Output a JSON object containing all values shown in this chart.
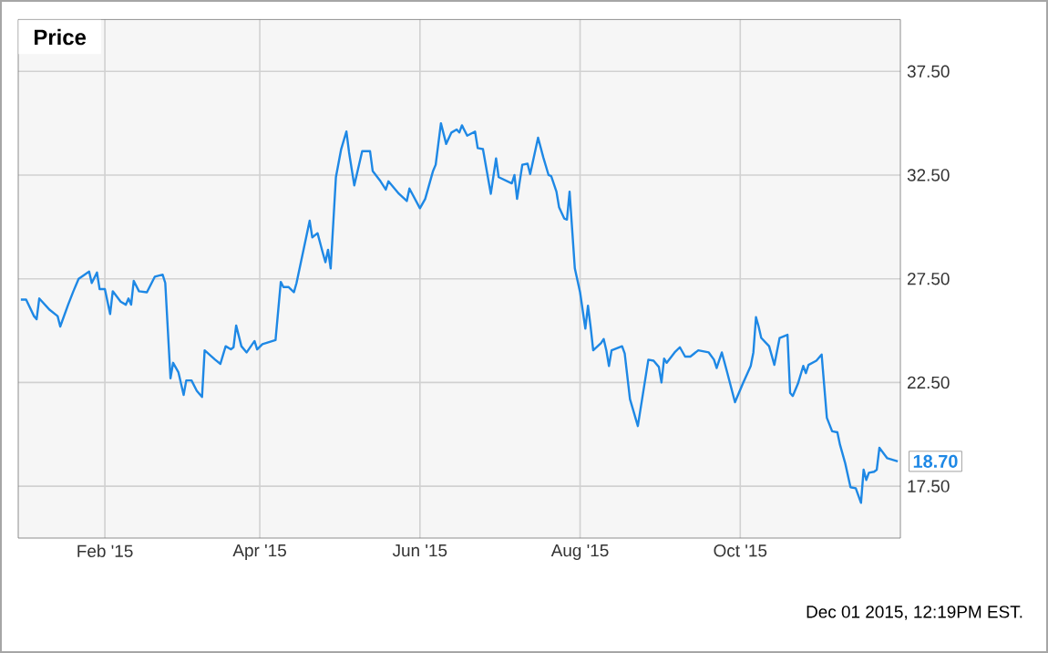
{
  "chart_data": {
    "type": "line",
    "title": "Price",
    "annotations": [
      {
        "text": "18.70",
        "x": "2015-11-30",
        "y": 18.7
      },
      "Dec 01 2015, 12:19PM EST."
    ],
    "x": [
      "2014-12-31",
      "2015-01-02",
      "2015-01-05",
      "2015-01-06",
      "2015-01-07",
      "2015-01-11",
      "2015-01-14",
      "2015-01-15",
      "2015-01-18",
      "2015-01-20",
      "2015-01-22",
      "2015-01-26",
      "2015-01-27",
      "2015-01-29",
      "2015-01-30",
      "2015-02-01",
      "2015-02-03",
      "2015-02-04",
      "2015-02-07",
      "2015-02-09",
      "2015-02-10",
      "2015-02-11",
      "2015-02-12",
      "2015-02-14",
      "2015-02-17",
      "2015-02-20",
      "2015-02-23",
      "2015-02-24",
      "2015-02-26",
      "2015-02-27",
      "2015-03-01",
      "2015-03-03",
      "2015-03-04",
      "2015-03-06",
      "2015-03-08",
      "2015-03-10",
      "2015-03-11",
      "2015-03-15",
      "2015-03-17",
      "2015-03-19",
      "2015-03-21",
      "2015-03-22",
      "2015-03-23",
      "2015-03-25",
      "2015-03-27",
      "2015-03-30",
      "2015-03-31",
      "2015-04-02",
      "2015-04-07",
      "2015-04-09",
      "2015-04-10",
      "2015-04-12",
      "2015-04-14",
      "2015-04-15",
      "2015-04-20",
      "2015-04-21",
      "2015-04-23",
      "2015-04-25",
      "2015-04-26",
      "2015-04-27",
      "2015-04-28",
      "2015-04-30",
      "2015-05-02",
      "2015-05-04",
      "2015-05-05",
      "2015-05-07",
      "2015-05-10",
      "2015-05-13",
      "2015-05-14",
      "2015-05-17",
      "2015-05-19",
      "2015-05-20",
      "2015-05-24",
      "2015-05-27",
      "2015-05-28",
      "2015-06-01",
      "2015-06-03",
      "2015-06-06",
      "2015-06-07",
      "2015-06-09",
      "2015-06-11",
      "2015-06-13",
      "2015-06-15",
      "2015-06-16",
      "2015-06-17",
      "2015-06-19",
      "2015-06-22",
      "2015-06-23",
      "2015-06-25",
      "2015-06-28",
      "2015-06-30",
      "2015-07-01",
      "2015-07-06",
      "2015-07-07",
      "2015-07-08",
      "2015-07-10",
      "2015-07-12",
      "2015-07-13",
      "2015-07-16",
      "2015-07-18",
      "2015-07-20",
      "2015-07-21",
      "2015-07-23",
      "2015-07-24",
      "2015-07-26",
      "2015-07-27",
      "2015-07-28",
      "2015-07-30",
      "2015-08-01",
      "2015-08-03",
      "2015-08-04",
      "2015-08-05",
      "2015-08-06",
      "2015-08-09",
      "2015-08-10",
      "2015-08-11",
      "2015-08-12",
      "2015-08-13",
      "2015-08-17",
      "2015-08-18",
      "2015-08-20",
      "2015-08-23",
      "2015-08-27",
      "2015-08-29",
      "2015-08-31",
      "2015-09-01",
      "2015-09-02",
      "2015-09-03",
      "2015-09-06",
      "2015-09-08",
      "2015-09-10",
      "2015-09-12",
      "2015-09-15",
      "2015-09-19",
      "2015-09-21",
      "2015-09-22",
      "2015-09-24",
      "2015-09-26",
      "2015-09-29",
      "2015-10-02",
      "2015-10-05",
      "2015-10-06",
      "2015-10-07",
      "2015-10-08",
      "2015-10-09",
      "2015-10-12",
      "2015-10-14",
      "2015-10-16",
      "2015-10-19",
      "2015-10-20",
      "2015-10-21",
      "2015-10-23",
      "2015-10-25",
      "2015-10-26",
      "2015-10-27",
      "2015-10-30",
      "2015-11-01",
      "2015-11-03",
      "2015-11-05",
      "2015-11-07",
      "2015-11-08",
      "2015-11-10",
      "2015-11-12",
      "2015-11-14",
      "2015-11-16",
      "2015-11-17",
      "2015-11-18",
      "2015-11-19",
      "2015-11-21",
      "2015-11-22",
      "2015-11-23",
      "2015-11-26",
      "2015-11-30"
    ],
    "series": [
      {
        "color": "#1e88e5",
        "values": [
          26.5,
          26.5,
          25.7,
          25.55,
          26.55,
          26.0,
          25.7,
          25.2,
          26.25,
          26.9,
          27.5,
          27.85,
          27.3,
          27.8,
          27.0,
          27.0,
          25.8,
          26.9,
          26.4,
          26.25,
          26.55,
          26.25,
          27.4,
          26.9,
          26.85,
          27.6,
          27.7,
          27.3,
          22.7,
          23.45,
          23.0,
          21.9,
          22.6,
          22.6,
          22.1,
          21.8,
          24.05,
          23.6,
          23.4,
          24.25,
          24.1,
          24.2,
          25.25,
          24.25,
          23.95,
          24.5,
          24.1,
          24.35,
          24.55,
          27.35,
          27.1,
          27.1,
          26.85,
          27.3,
          30.3,
          29.5,
          29.7,
          28.75,
          28.3,
          28.9,
          28.0,
          32.4,
          33.75,
          34.6,
          33.6,
          32.0,
          33.65,
          33.65,
          32.7,
          32.2,
          31.8,
          32.2,
          31.6,
          31.25,
          31.85,
          30.9,
          31.35,
          32.7,
          33.0,
          35.0,
          34.0,
          34.55,
          34.7,
          34.55,
          34.9,
          34.4,
          34.6,
          33.8,
          33.75,
          31.6,
          33.3,
          32.4,
          32.1,
          32.5,
          31.35,
          33.0,
          33.05,
          32.55,
          34.3,
          33.35,
          32.5,
          32.45,
          31.7,
          30.95,
          30.4,
          30.35,
          31.7,
          28.0,
          26.85,
          25.1,
          26.2,
          25.2,
          24.05,
          24.4,
          24.6,
          24.05,
          23.3,
          24.05,
          24.25,
          23.9,
          21.7,
          20.4,
          23.6,
          23.55,
          23.25,
          22.5,
          23.65,
          23.45,
          23.95,
          24.2,
          23.75,
          23.75,
          24.05,
          23.95,
          23.6,
          23.2,
          23.95,
          23.0,
          21.55,
          22.45,
          23.3,
          23.95,
          25.65,
          25.2,
          24.65,
          24.25,
          23.35,
          24.65,
          24.8,
          22.0,
          21.85,
          22.45,
          23.3,
          22.95,
          23.35,
          23.55,
          23.85,
          20.8,
          20.15,
          20.1,
          19.5,
          18.6,
          17.45,
          17.4,
          16.7,
          18.3,
          17.8,
          18.15,
          18.2,
          18.3,
          19.35,
          18.85,
          18.7
        ]
      }
    ],
    "xlim": [
      "2014-12-30",
      "2015-12-01"
    ],
    "xticks": [
      {
        "value": "2015-02-01",
        "label": "Feb '15"
      },
      {
        "value": "2015-04-01",
        "label": "Apr '15"
      },
      {
        "value": "2015-06-01",
        "label": "Jun '15"
      },
      {
        "value": "2015-08-01",
        "label": "Aug '15"
      },
      {
        "value": "2015-10-01",
        "label": "Oct '15"
      }
    ],
    "ylim": [
      15,
      40
    ],
    "yticks": [
      {
        "value": 17.5,
        "label": "17.50"
      },
      {
        "value": 22.5,
        "label": "22.50"
      },
      {
        "value": 27.5,
        "label": "27.50"
      },
      {
        "value": 32.5,
        "label": "32.50"
      },
      {
        "value": 37.5,
        "label": "37.50"
      }
    ],
    "grid": true
  }
}
